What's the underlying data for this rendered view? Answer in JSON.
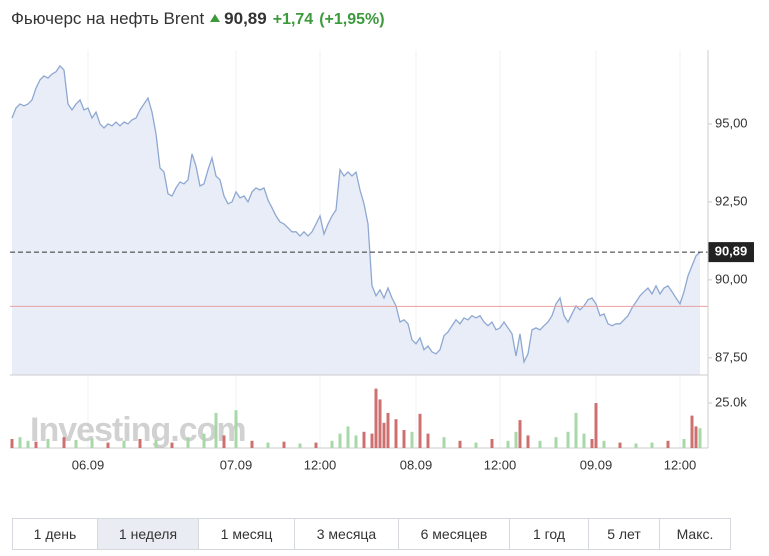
{
  "header": {
    "name": "Фьючерс на нефть Brent",
    "price": "90,89",
    "change": "+1,74",
    "change_pct": "(+1,95%)"
  },
  "chart_data": {
    "type": "area",
    "color": "#8ea8d2",
    "fill": "#e8edf7",
    "watermark": "Investing.com",
    "values": [
      95.19,
      95.51,
      95.64,
      95.58,
      95.64,
      95.77,
      96.15,
      96.41,
      96.54,
      96.47,
      96.6,
      96.67,
      96.86,
      96.73,
      95.64,
      95.45,
      95.64,
      95.77,
      95.45,
      95.51,
      95.19,
      95.38,
      95.0,
      94.87,
      95.0,
      94.94,
      95.06,
      94.94,
      95.06,
      95.0,
      95.13,
      95.19,
      95.45,
      95.64,
      95.83,
      95.38,
      94.68,
      93.59,
      93.46,
      92.76,
      92.69,
      92.95,
      93.14,
      93.08,
      93.21,
      94.04,
      93.65,
      93.01,
      93.08,
      93.53,
      93.91,
      93.33,
      93.21,
      92.69,
      92.44,
      92.5,
      92.82,
      92.63,
      92.69,
      92.5,
      92.82,
      92.95,
      92.88,
      92.95,
      92.56,
      92.31,
      92.05,
      91.86,
      91.79,
      91.67,
      91.54,
      91.54,
      91.41,
      91.54,
      91.41,
      91.54,
      91.79,
      92.05,
      91.47,
      91.79,
      92.05,
      92.24,
      93.53,
      93.33,
      93.46,
      93.33,
      93.46,
      92.88,
      92.44,
      91.79,
      89.81,
      89.49,
      89.68,
      89.42,
      89.74,
      89.42,
      89.17,
      88.65,
      88.72,
      88.59,
      88.08,
      87.95,
      88.14,
      87.76,
      87.88,
      87.69,
      87.63,
      87.76,
      88.21,
      88.33,
      88.53,
      88.72,
      88.59,
      88.78,
      88.72,
      88.85,
      88.78,
      88.85,
      88.65,
      88.53,
      88.65,
      88.4,
      88.46,
      88.65,
      88.46,
      88.27,
      87.56,
      88.27,
      87.37,
      87.63,
      88.4,
      88.46,
      88.4,
      88.53,
      88.65,
      88.85,
      89.23,
      89.42,
      88.85,
      88.65,
      88.91,
      89.17,
      89.04,
      89.17,
      89.36,
      89.42,
      89.23,
      88.85,
      88.91,
      88.59,
      88.53,
      88.59,
      88.59,
      88.72,
      88.85,
      89.1,
      89.29,
      89.49,
      89.62,
      89.74,
      89.55,
      89.81,
      89.55,
      89.74,
      89.81,
      89.62,
      89.42,
      89.23,
      89.62,
      90.13,
      90.45,
      90.77,
      90.89
    ],
    "xlim": [
      0,
      173
    ],
    "xticks": [
      {
        "value": 19,
        "label": "06.09"
      },
      {
        "value": 56,
        "label": "07.09"
      },
      {
        "value": 77,
        "label": "12:00"
      },
      {
        "value": 101,
        "label": "08.09"
      },
      {
        "value": 122,
        "label": "12:00"
      },
      {
        "value": 146,
        "label": "09.09"
      },
      {
        "value": 167,
        "label": "12:00"
      }
    ],
    "ylim": [
      86.95,
      97.37
    ],
    "yticks": [
      {
        "value": 87.5,
        "label": "87,50"
      },
      {
        "value": 90,
        "label": "90,00"
      },
      {
        "value": 92.5,
        "label": "92,50"
      },
      {
        "value": 95,
        "label": "95,00"
      }
    ],
    "last_price": {
      "value": 90.89,
      "label": "90,89"
    },
    "reference_line": 89.15,
    "volume": {
      "x": [
        0,
        2,
        4,
        6,
        9,
        13,
        16,
        20,
        24,
        28,
        32,
        36,
        40,
        44,
        48,
        51,
        53,
        56,
        60,
        64,
        68,
        72,
        76,
        80,
        82,
        84,
        86,
        88,
        90,
        91,
        92,
        93,
        94,
        96,
        98,
        100,
        102,
        104,
        108,
        112,
        116,
        120,
        124,
        126,
        127,
        129,
        132,
        136,
        139,
        141,
        143,
        145,
        146,
        148,
        152,
        156,
        160,
        164,
        168,
        170,
        171,
        172
      ],
      "values": [
        5000,
        6000,
        4000,
        3500,
        5000,
        6000,
        4500,
        5500,
        3000,
        4000,
        5000,
        4500,
        3000,
        6000,
        8000,
        19500,
        7000,
        21000,
        4000,
        3000,
        3500,
        2500,
        3000,
        4000,
        8000,
        12000,
        7000,
        9000,
        8000,
        33000,
        27000,
        14000,
        19500,
        16000,
        10000,
        9000,
        19000,
        8000,
        6000,
        4000,
        3000,
        5000,
        4000,
        9000,
        15500,
        7000,
        4000,
        6000,
        9000,
        19500,
        8000,
        5000,
        25000,
        4000,
        3000,
        2500,
        3000,
        4000,
        5000,
        18000,
        12000,
        11000
      ],
      "colors": [
        "#cf7070",
        "#a8d8a8",
        "#a8d8a8",
        "#cf7070",
        "#a8d8a8",
        "#cf7070",
        "#a8d8a8",
        "#a8d8a8",
        "#cf7070",
        "#a8d8a8",
        "#cf7070",
        "#a8d8a8",
        "#cf7070",
        "#a8d8a8",
        "#a8d8a8",
        "#a8d8a8",
        "#cf7070",
        "#a8d8a8",
        "#cf7070",
        "#a8d8a8",
        "#cf7070",
        "#a8d8a8",
        "#cf7070",
        "#a8d8a8",
        "#a8d8a8",
        "#a8d8a8",
        "#a8d8a8",
        "#cf7070",
        "#cf7070",
        "#cf7070",
        "#cf7070",
        "#cf7070",
        "#cf7070",
        "#cf7070",
        "#cf7070",
        "#a8d8a8",
        "#cf7070",
        "#cf7070",
        "#a8d8a8",
        "#cf7070",
        "#a8d8a8",
        "#cf7070",
        "#a8d8a8",
        "#a8d8a8",
        "#cf7070",
        "#cf7070",
        "#a8d8a8",
        "#a8d8a8",
        "#a8d8a8",
        "#a8d8a8",
        "#a8d8a8",
        "#cf7070",
        "#cf7070",
        "#a8d8a8",
        "#cf7070",
        "#a8d8a8",
        "#a8d8a8",
        "#cf7070",
        "#a8d8a8",
        "#cf7070",
        "#cf7070",
        "#a8d8a8"
      ],
      "ylim": [
        0,
        37800
      ],
      "yticks": [
        {
          "value": 25000,
          "label": "25.0k"
        }
      ]
    }
  },
  "periods": {
    "items": [
      "1 день",
      "1 неделя",
      "1 месяц",
      "3 месяца",
      "6 месяцев",
      "1 год",
      "5 лет",
      "Макс."
    ],
    "selected": 1
  }
}
